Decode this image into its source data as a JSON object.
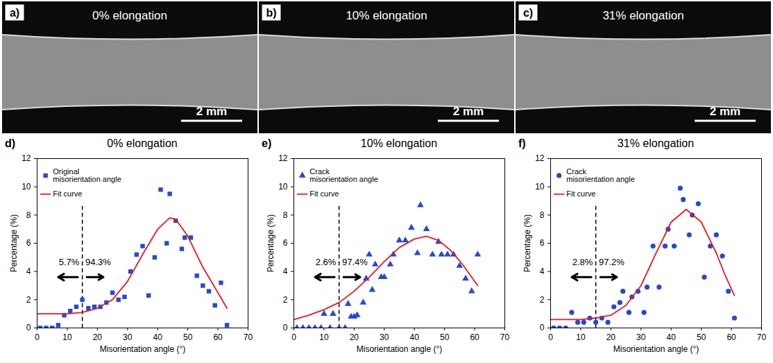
{
  "images": [
    {
      "panel": "a)",
      "title": "0% elongation",
      "scale_bar": "2 mm"
    },
    {
      "panel": "b)",
      "title": "10% elongation",
      "scale_bar": "2 mm"
    },
    {
      "panel": "c)",
      "title": "31% elongation",
      "scale_bar": "2 mm"
    }
  ],
  "chart_data": [
    {
      "type": "scatter",
      "panel": "d)",
      "title": "0% elongation",
      "x_label": "Misorientation angle (°)",
      "y_label": "Percentage (%)",
      "xlim": [
        0,
        70
      ],
      "ylim": [
        0,
        12
      ],
      "xticks": [
        0,
        10,
        20,
        30,
        40,
        50,
        60,
        70
      ],
      "yticks": [
        0,
        2,
        4,
        6,
        8,
        10,
        12
      ],
      "legend": "top-left",
      "series": [
        {
          "name": "Original misorientation angle",
          "type": "scatter",
          "marker": "square",
          "color": "#2349d6",
          "x": [
            1,
            3,
            5,
            7,
            9,
            11,
            13,
            15,
            17,
            19,
            21,
            23,
            25,
            27,
            29,
            31,
            33,
            35,
            37,
            39,
            41,
            43,
            44,
            46,
            48,
            49,
            51,
            53,
            55,
            57,
            59,
            61,
            63
          ],
          "values": [
            0,
            0,
            0,
            0.2,
            0.9,
            1.2,
            1.5,
            2.0,
            1.4,
            1.5,
            1.5,
            1.8,
            2.5,
            2.0,
            2.2,
            4.0,
            5.2,
            5.8,
            2.3,
            5.0,
            9.8,
            6.0,
            9.5,
            7.6,
            5.6,
            6.4,
            6.4,
            3.7,
            3.0,
            2.6,
            1.6,
            3.2,
            0.2
          ]
        },
        {
          "name": "Fit curve",
          "type": "line",
          "color": "#e31a1c",
          "x": [
            0,
            5,
            10,
            15,
            20,
            25,
            30,
            35,
            40,
            44,
            46,
            50,
            55,
            60,
            63
          ],
          "values": [
            1.0,
            1.0,
            1.0,
            1.1,
            1.4,
            2.0,
            3.3,
            5.2,
            7.0,
            7.8,
            7.7,
            6.5,
            4.3,
            2.5,
            1.4
          ]
        }
      ],
      "annotations": {
        "threshold": 15,
        "left_label": "5.7%",
        "right_label": "94.3%"
      }
    },
    {
      "type": "scatter",
      "panel": "e)",
      "title": "10% elongation",
      "x_label": "Misorientation angle (°)",
      "y_label": "Percentage (%)",
      "xlim": [
        0,
        70
      ],
      "ylim": [
        0,
        12
      ],
      "xticks": [
        0,
        10,
        20,
        30,
        40,
        50,
        60,
        70
      ],
      "yticks": [
        0,
        2,
        4,
        6,
        8,
        10,
        12
      ],
      "legend": "top-left",
      "series": [
        {
          "name": "Crack misorientation angle",
          "type": "scatter",
          "marker": "triangle",
          "color": "#2349d6",
          "x": [
            1,
            3,
            5,
            7,
            9,
            10,
            12,
            13,
            15,
            17,
            18,
            19,
            20,
            21,
            23,
            24,
            25,
            26,
            27,
            29,
            30,
            32,
            33,
            35,
            37,
            39,
            41,
            42,
            44,
            46,
            48,
            49,
            51,
            53,
            55,
            57,
            59,
            61
          ],
          "values": [
            0,
            0,
            0,
            0,
            0,
            1.0,
            0,
            1.0,
            0,
            0,
            1.7,
            0.8,
            0.8,
            0.9,
            1.8,
            3.5,
            5.2,
            2.7,
            4.5,
            3.6,
            3.6,
            4.5,
            5.2,
            6.2,
            6.2,
            7.1,
            5.3,
            8.7,
            7.0,
            5.2,
            6.1,
            5.2,
            5.2,
            5.2,
            4.4,
            3.5,
            2.6,
            5.2
          ]
        },
        {
          "name": "Fit curve",
          "type": "line",
          "color": "#e31a1c",
          "x": [
            0,
            5,
            10,
            15,
            20,
            25,
            30,
            35,
            40,
            44,
            48,
            52,
            56,
            61
          ],
          "values": [
            0.6,
            0.9,
            1.3,
            1.8,
            2.6,
            3.6,
            4.7,
            5.7,
            6.3,
            6.5,
            6.2,
            5.5,
            4.5,
            3.0
          ]
        }
      ],
      "annotations": {
        "threshold": 15,
        "left_label": "2.6%",
        "right_label": "97.4%"
      }
    },
    {
      "type": "scatter",
      "panel": "f)",
      "title": "31% elongation",
      "x_label": "Misorientation angle (°)",
      "y_label": "Percentage (%)",
      "xlim": [
        0,
        70
      ],
      "ylim": [
        0,
        12
      ],
      "xticks": [
        0,
        10,
        20,
        30,
        40,
        50,
        60,
        70
      ],
      "yticks": [
        0,
        2,
        4,
        6,
        8,
        10,
        12
      ],
      "legend": "top-left",
      "series": [
        {
          "name": "Crack misorientation angle",
          "type": "scatter",
          "marker": "circle",
          "color": "#2349d6",
          "x": [
            1,
            3,
            5,
            7,
            9,
            11,
            13,
            15,
            17,
            19,
            21,
            23,
            24,
            26,
            27,
            29,
            31,
            32,
            34,
            36,
            38,
            39,
            41,
            43,
            44,
            46,
            47,
            49,
            51,
            53,
            55,
            57,
            59,
            61
          ],
          "values": [
            0,
            0,
            0,
            1.1,
            0.4,
            0.4,
            0.7,
            0.4,
            0.7,
            0.4,
            1.5,
            1.8,
            2.6,
            1.1,
            2.2,
            2.6,
            1.1,
            2.9,
            5.8,
            2.9,
            5.8,
            7.0,
            5.8,
            9.9,
            9.1,
            6.6,
            8.0,
            8.8,
            3.6,
            5.8,
            6.6,
            5.1,
            2.6,
            0.7
          ]
        },
        {
          "name": "Fit curve",
          "type": "line",
          "color": "#e31a1c",
          "x": [
            0,
            10,
            15,
            20,
            25,
            30,
            35,
            40,
            45,
            50,
            55,
            58,
            61
          ],
          "values": [
            0.6,
            0.6,
            0.7,
            0.9,
            1.6,
            3.0,
            5.3,
            7.5,
            8.4,
            7.5,
            5.3,
            3.7,
            2.3
          ]
        }
      ],
      "annotations": {
        "threshold": 15,
        "left_label": "2.8%",
        "right_label": "97.2%"
      }
    }
  ]
}
